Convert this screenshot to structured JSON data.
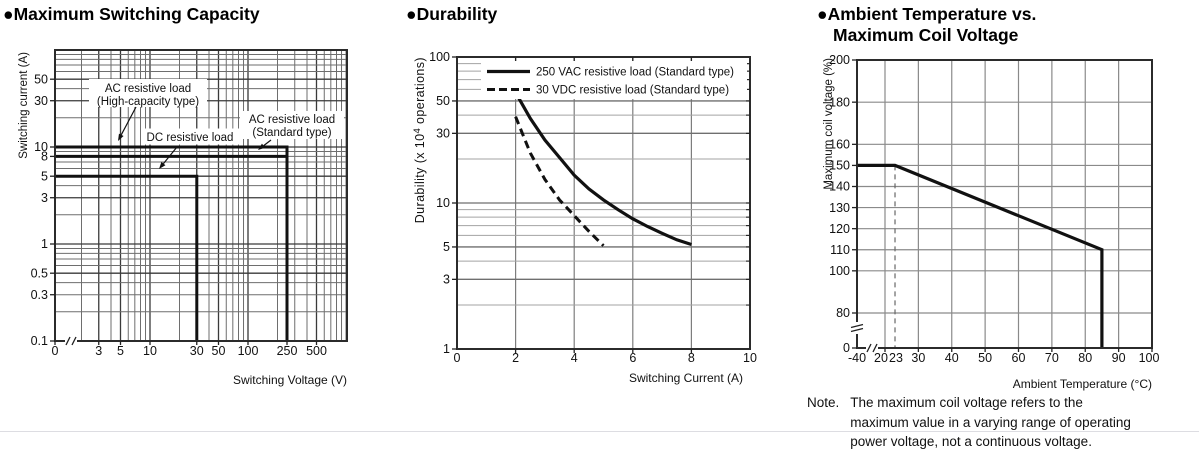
{
  "page": {
    "background": "#ffffff",
    "divider_color": "#dddde2",
    "headings": [
      {
        "line1": "●Maximum Switching Capacity",
        "line2": ""
      },
      {
        "line1": "●Durability",
        "line2": ""
      },
      {
        "line1": "●Ambient Temperature vs.",
        "line2": "Maximum Coil Voltage"
      }
    ],
    "note": {
      "label": "Note.",
      "lines": [
        "The maximum coil voltage refers to the",
        "maximum value in a varying range of operating",
        "power voltage, not a continuous voltage."
      ]
    }
  },
  "colors": {
    "curve": "#111111",
    "border": "#2b2b2b",
    "grid_dark": "#3a3a3a",
    "grid_mid": "#6e6e6e",
    "grid_light": "#a3a3a3"
  },
  "chart_data": [
    {
      "id": "maximum-switching-capacity",
      "type": "line",
      "title": "Maximum Switching Capacity",
      "xlabel": "Switching Voltage (V)",
      "ylabel": "Switching current (A)",
      "x_scale": "log",
      "y_scale": "log",
      "x_range": [
        1,
        1000
      ],
      "y_range": [
        0.1,
        100
      ],
      "x_ticks": [
        "0",
        "3",
        "5",
        "10",
        "30",
        "50",
        "100",
        "250",
        "500"
      ],
      "x_tick_values": [
        0,
        3,
        5,
        10,
        30,
        50,
        100,
        250,
        500
      ],
      "y_ticks": [
        "50",
        "30",
        "10",
        "8",
        "5",
        "3",
        "1",
        "0.5",
        "0.3",
        "0.1"
      ],
      "y_tick_values": [
        50,
        30,
        10,
        8,
        5,
        3,
        1,
        0.5,
        0.3,
        0.1
      ],
      "x_axis_break_after_zero": true,
      "series": [
        {
          "name": "AC resistive load (High-capacity type)",
          "line_style": "solid",
          "points": [
            [
              0,
              10
            ],
            [
              250,
              10
            ],
            [
              250,
              0.1
            ]
          ]
        },
        {
          "name": "AC resistive load (Standard type)",
          "line_style": "solid",
          "points": [
            [
              0,
              8
            ],
            [
              250,
              8
            ]
          ]
        },
        {
          "name": "DC resistive load",
          "line_style": "solid",
          "points": [
            [
              0,
              5
            ],
            [
              30,
              5
            ],
            [
              30,
              0.1
            ]
          ]
        }
      ],
      "annotations": [
        {
          "lines": [
            "AC resistive load",
            "(High-capacity type)"
          ]
        },
        {
          "lines": [
            "DC resistive load"
          ]
        },
        {
          "lines": [
            "AC resistive load",
            "(Standard type)"
          ]
        }
      ]
    },
    {
      "id": "durability",
      "type": "line",
      "title": "Durability",
      "xlabel": "Switching Current (A)",
      "ylabel_parts": {
        "prefix": "Durability (x 10",
        "sup": "4",
        "suffix": " operations)"
      },
      "x_scale": "linear",
      "y_scale": "log",
      "x_range": [
        0,
        10
      ],
      "y_range": [
        1,
        100
      ],
      "x_ticks": [
        "0",
        "2",
        "4",
        "6",
        "8",
        "10"
      ],
      "x_tick_values": [
        0,
        2,
        4,
        6,
        8,
        10
      ],
      "y_ticks": [
        "100",
        "50",
        "30",
        "10",
        "5",
        "3",
        "1"
      ],
      "y_tick_values": [
        100,
        50,
        30,
        10,
        5,
        3,
        1
      ],
      "legend": {
        "position": "top",
        "entries": [
          "250 VAC resistive load (Standard type)",
          "30 VDC resistive load (Standard type)"
        ]
      },
      "series": [
        {
          "name": "250 VAC resistive load (Standard type)",
          "line_style": "solid",
          "points": [
            [
              2,
              57
            ],
            [
              2.5,
              38
            ],
            [
              3,
              27
            ],
            [
              3.5,
              20.5
            ],
            [
              4,
              15.5
            ],
            [
              4.5,
              12.5
            ],
            [
              5,
              10.5
            ],
            [
              5.5,
              9.0
            ],
            [
              6,
              7.8
            ],
            [
              6.5,
              6.9
            ],
            [
              7,
              6.2
            ],
            [
              7.5,
              5.6
            ],
            [
              8,
              5.2
            ]
          ]
        },
        {
          "name": "30 VDC resistive load (Standard type)",
          "line_style": "dashed",
          "points": [
            [
              2,
              39
            ],
            [
              2.5,
              22
            ],
            [
              3,
              14.5
            ],
            [
              3.5,
              10.5
            ],
            [
              4,
              8.2
            ],
            [
              4.5,
              6.4
            ],
            [
              5,
              5.1
            ]
          ]
        }
      ]
    },
    {
      "id": "ambient-temperature-vs-maximum-coil-voltage",
      "type": "line",
      "title": "Ambient Temperature vs. Maximum Coil Voltage",
      "xlabel": "Ambient Temperature (°C)",
      "ylabel": "Maximum coil voltage (%)",
      "x_scale": "linear-with-break",
      "y_scale": "linear-with-break",
      "x_range": [
        -40,
        100
      ],
      "y_range": [
        0,
        200
      ],
      "x_ticks": [
        "-40",
        "20",
        "23",
        "30",
        "40",
        "50",
        "60",
        "70",
        "80",
        "90",
        "100"
      ],
      "x_tick_values": [
        -40,
        20,
        23,
        30,
        40,
        50,
        60,
        70,
        80,
        90,
        100
      ],
      "y_ticks": [
        "200",
        "180",
        "160",
        "150",
        "140",
        "130",
        "120",
        "110",
        "100",
        "80",
        "0"
      ],
      "y_tick_values": [
        200,
        180,
        160,
        150,
        140,
        130,
        120,
        110,
        100,
        80,
        0
      ],
      "guide_line_x": 23,
      "series": [
        {
          "name": "Maximum coil voltage",
          "line_style": "solid",
          "points": [
            [
              -40,
              150
            ],
            [
              23,
              150
            ],
            [
              85,
              110
            ],
            [
              85,
              0
            ]
          ]
        }
      ]
    }
  ]
}
